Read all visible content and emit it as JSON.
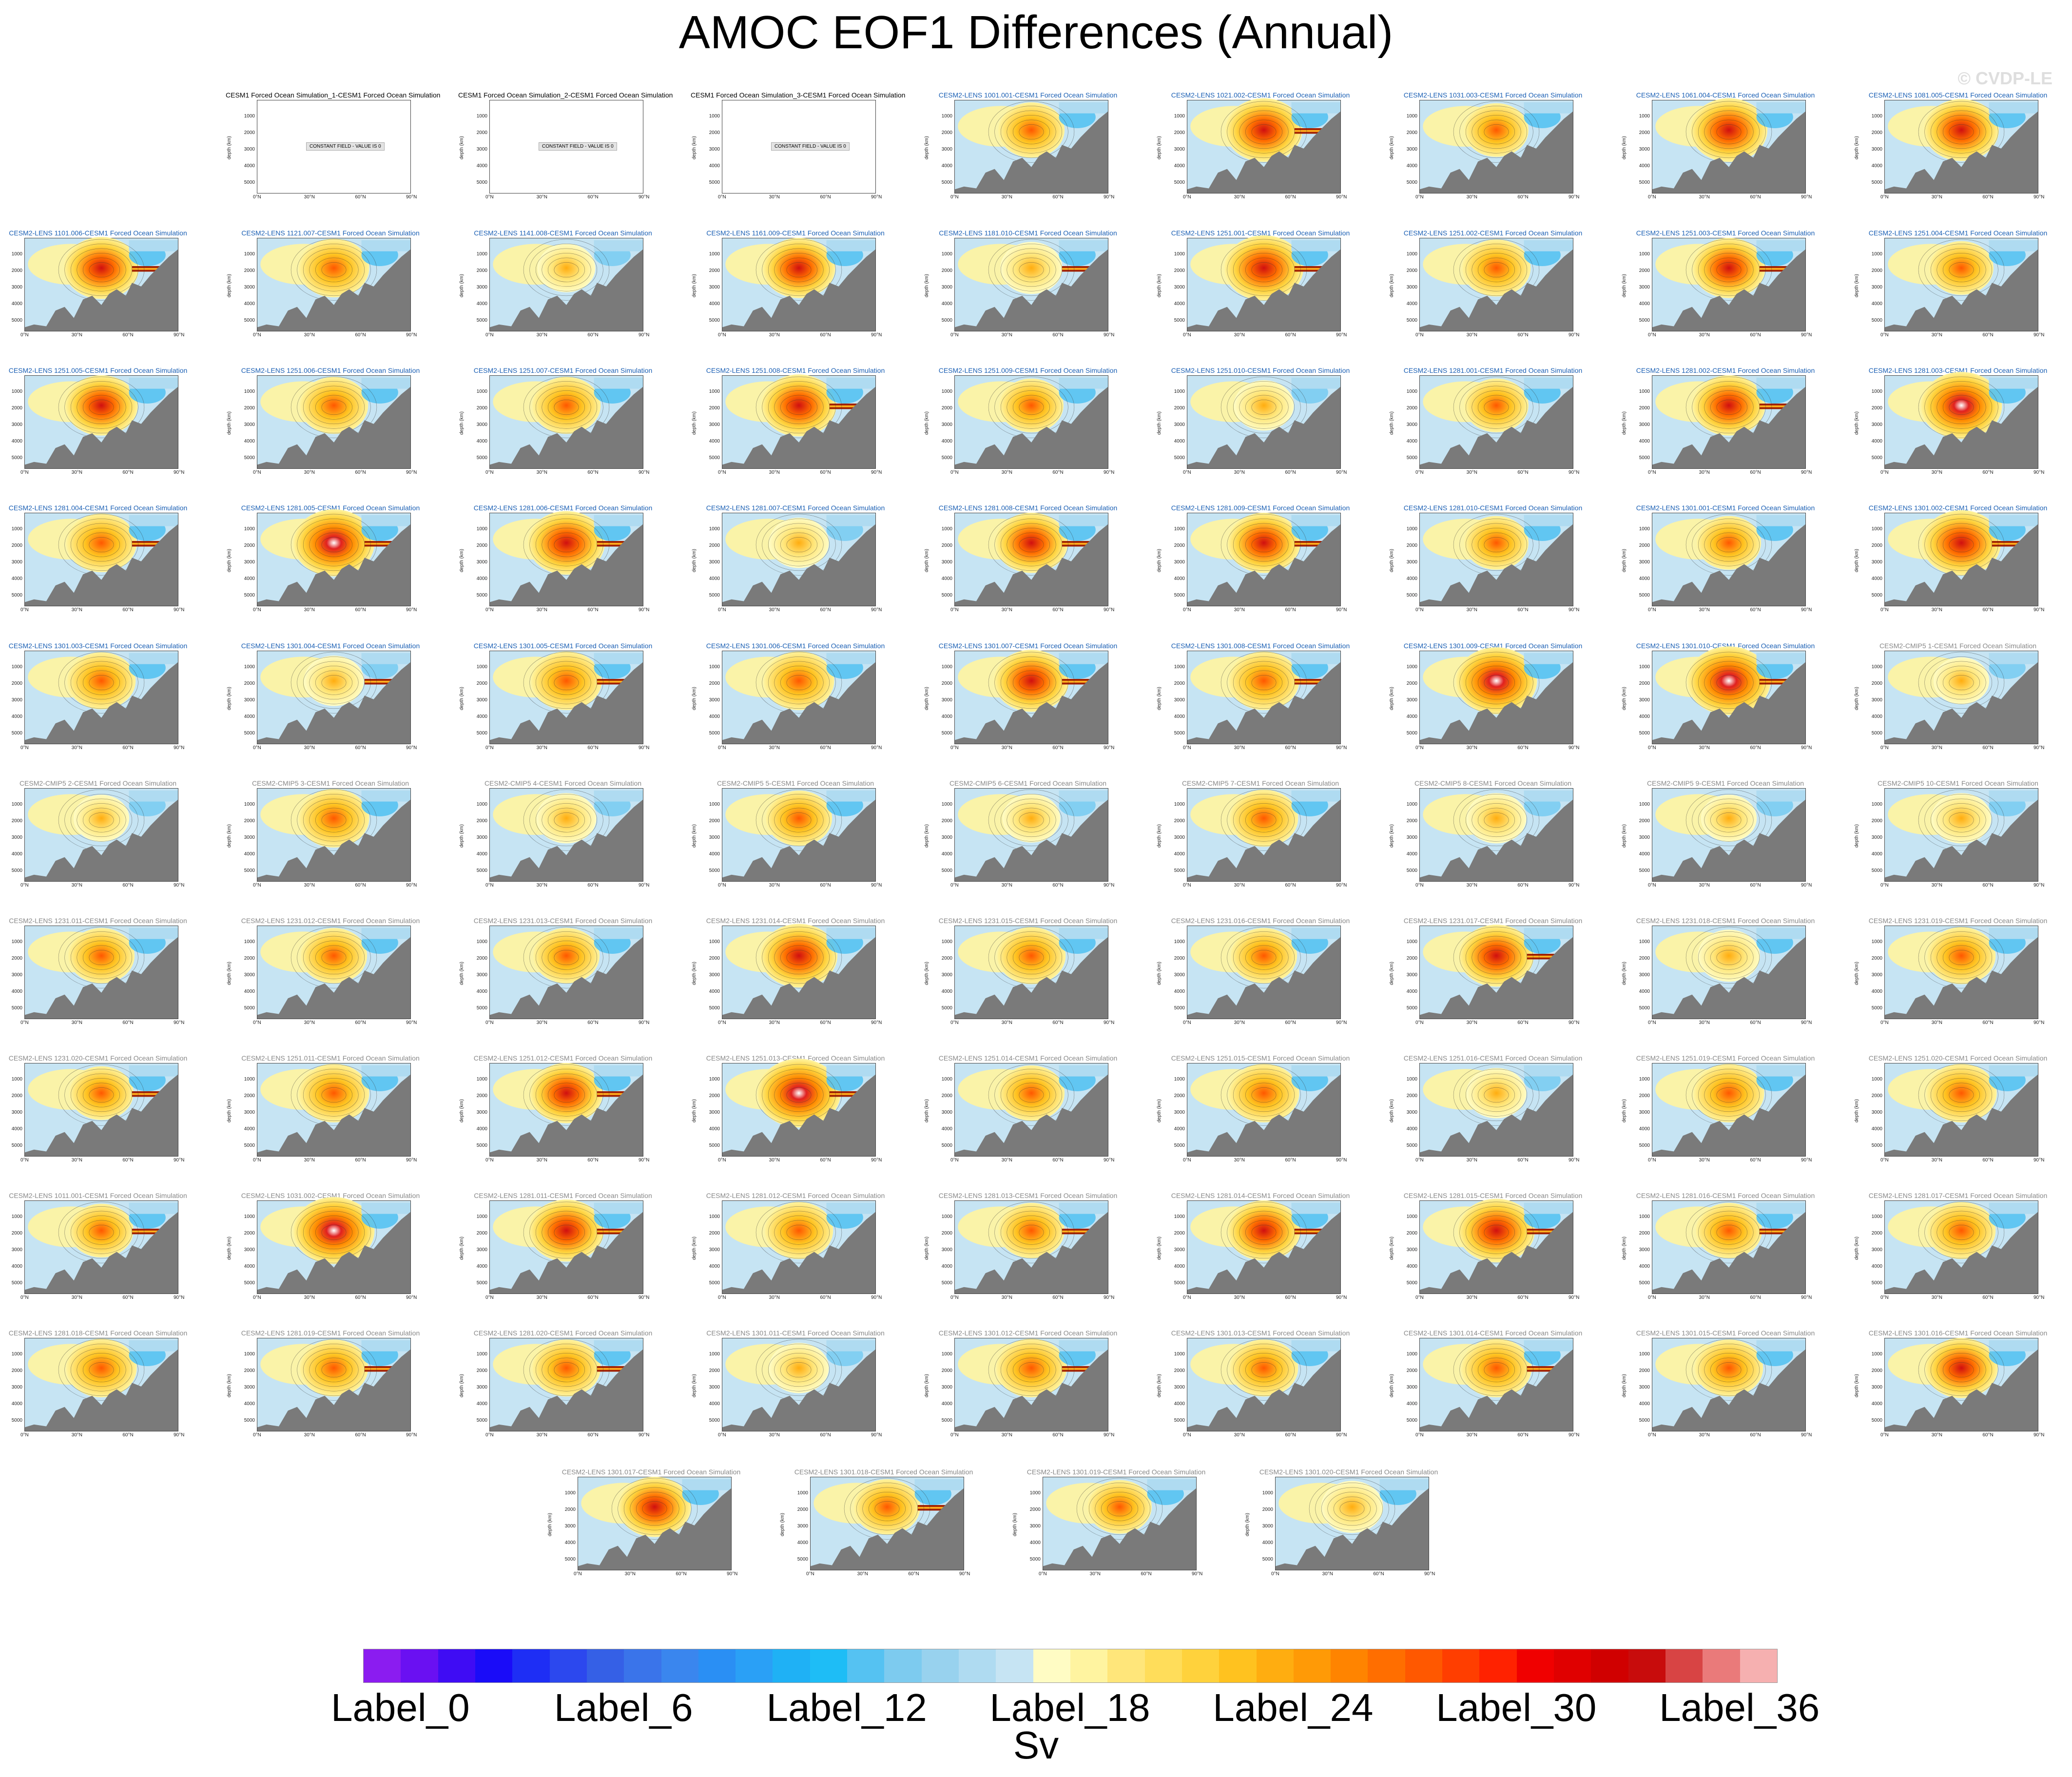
{
  "title": "AMOC EOF1 Differences (Annual)",
  "watermark": "© CVDP-LE",
  "units": "Sv",
  "chart_data": {
    "type": "heatmap",
    "title": "AMOC EOF1 Differences (Annual)",
    "yaxis": {
      "label": "depth (km)",
      "ticks": [
        "1000",
        "2000",
        "3000",
        "4000",
        "5000"
      ],
      "reversed": true
    },
    "xaxis": {
      "ticks": [
        "0°N",
        "30°N",
        "60°N",
        "90°N"
      ]
    },
    "colorbar": {
      "labels": [
        "Label_0",
        "Label_6",
        "Label_12",
        "Label_18",
        "Label_24",
        "Label_30",
        "Label_36"
      ],
      "colors": [
        "#8b1cf0",
        "#6a10f2",
        "#3f0cf4",
        "#1a0cf8",
        "#1e2ef5",
        "#2c48ee",
        "#3560e6",
        "#3a74ea",
        "#3a86ee",
        "#2a8ff4",
        "#2aa0f6",
        "#1fb1f5",
        "#1ebdf6",
        "#55c2f2",
        "#7dcbef",
        "#98d2ee",
        "#afdbf1",
        "#c6e4f3",
        "#fffcc4",
        "#fff4a0",
        "#ffe67a",
        "#ffdd5a",
        "#ffd23c",
        "#ffc21f",
        "#ffad10",
        "#ff9a06",
        "#ff8400",
        "#ff6e00",
        "#ff5800",
        "#ff3e00",
        "#ff2200",
        "#f00000",
        "#e00000",
        "#d00000",
        "#c80c0c",
        "#d84444",
        "#ea7a7a",
        "#f6b0b0"
      ]
    },
    "panels": [
      {
        "label": "CESM1 Forced Ocean Simulation_1-CESM1 Forced Ocean Simulation",
        "group": "black",
        "intensity": 0,
        "constant": true
      },
      {
        "label": "CESM1 Forced Ocean Simulation_2-CESM1 Forced Ocean Simulation",
        "group": "black",
        "intensity": 0,
        "constant": true
      },
      {
        "label": "CESM1 Forced Ocean Simulation_3-CESM1 Forced Ocean Simulation",
        "group": "black",
        "intensity": 0,
        "constant": true
      },
      {
        "label": "CESM2-LENS 1001.001-CESM1 Forced Ocean Simulation",
        "group": "lens",
        "intensity": 0.55,
        "stripe": false
      },
      {
        "label": "CESM2-LENS 1021.002-CESM1 Forced Ocean Simulation",
        "group": "lens",
        "intensity": 0.8,
        "stripe": true
      },
      {
        "label": "CESM2-LENS 1031.003-CESM1 Forced Ocean Simulation",
        "group": "lens",
        "intensity": 0.5,
        "stripe": false
      },
      {
        "label": "CESM2-LENS 1061.004-CESM1 Forced Ocean Simulation",
        "group": "lens",
        "intensity": 0.8,
        "stripe": false
      },
      {
        "label": "CESM2-LENS 1081.005-CESM1 Forced Ocean Simulation",
        "group": "lens",
        "intensity": 0.75,
        "stripe": false
      },
      {
        "label": "CESM2-LENS 1101.006-CESM1 Forced Ocean Simulation",
        "group": "lens",
        "intensity": 0.75,
        "stripe": true
      },
      {
        "label": "CESM2-LENS 1121.007-CESM1 Forced Ocean Simulation",
        "group": "lens",
        "intensity": 0.65,
        "stripe": false
      },
      {
        "label": "CESM2-LENS 1141.008-CESM1 Forced Ocean Simulation",
        "group": "lens",
        "intensity": 0.35,
        "stripe": false
      },
      {
        "label": "CESM2-LENS 1161.009-CESM1 Forced Ocean Simulation",
        "group": "lens",
        "intensity": 0.7,
        "stripe": false
      },
      {
        "label": "CESM2-LENS 1181.010-CESM1 Forced Ocean Simulation",
        "group": "lens",
        "intensity": 0.45,
        "stripe": true
      },
      {
        "label": "CESM2-LENS 1251.001-CESM1 Forced Ocean Simulation",
        "group": "lens",
        "intensity": 0.85,
        "stripe": true
      },
      {
        "label": "CESM2-LENS 1251.002-CESM1 Forced Ocean Simulation",
        "group": "lens",
        "intensity": 0.6,
        "stripe": false
      },
      {
        "label": "CESM2-LENS 1251.003-CESM1 Forced Ocean Simulation",
        "group": "lens",
        "intensity": 0.7,
        "stripe": true
      },
      {
        "label": "CESM2-LENS 1251.004-CESM1 Forced Ocean Simulation",
        "group": "lens",
        "intensity": 0.5,
        "stripe": false
      },
      {
        "label": "CESM2-LENS 1251.005-CESM1 Forced Ocean Simulation",
        "group": "lens",
        "intensity": 0.7,
        "stripe": false
      },
      {
        "label": "CESM2-LENS 1251.006-CESM1 Forced Ocean Simulation",
        "group": "lens",
        "intensity": 0.6,
        "stripe": false
      },
      {
        "label": "CESM2-LENS 1251.007-CESM1 Forced Ocean Simulation",
        "group": "lens",
        "intensity": 0.6,
        "stripe": false
      },
      {
        "label": "CESM2-LENS 1251.008-CESM1 Forced Ocean Simulation",
        "group": "lens",
        "intensity": 0.75,
        "stripe": true
      },
      {
        "label": "CESM2-LENS 1251.009-CESM1 Forced Ocean Simulation",
        "group": "lens",
        "intensity": 0.5,
        "stripe": false
      },
      {
        "label": "CESM2-LENS 1251.010-CESM1 Forced Ocean Simulation",
        "group": "lens",
        "intensity": 0.4,
        "stripe": false
      },
      {
        "label": "CESM2-LENS 1281.001-CESM1 Forced Ocean Simulation",
        "group": "lens",
        "intensity": 0.5,
        "stripe": false
      },
      {
        "label": "CESM2-LENS 1281.002-CESM1 Forced Ocean Simulation",
        "group": "lens",
        "intensity": 0.7,
        "stripe": true
      },
      {
        "label": "CESM2-LENS 1281.003-CESM1 Forced Ocean Simulation",
        "group": "lens",
        "intensity": 0.9,
        "stripe": false
      },
      {
        "label": "CESM2-LENS 1281.004-CESM1 Forced Ocean Simulation",
        "group": "lens",
        "intensity": 0.65,
        "stripe": true
      },
      {
        "label": "CESM2-LENS 1281.005-CESM1 Forced Ocean Simulation",
        "group": "lens",
        "intensity": 0.9,
        "stripe": true
      },
      {
        "label": "CESM2-LENS 1281.006-CESM1 Forced Ocean Simulation",
        "group": "lens",
        "intensity": 0.8,
        "stripe": true
      },
      {
        "label": "CESM2-LENS 1281.007-CESM1 Forced Ocean Simulation",
        "group": "lens",
        "intensity": 0.4,
        "stripe": false
      },
      {
        "label": "CESM2-LENS 1281.008-CESM1 Forced Ocean Simulation",
        "group": "lens",
        "intensity": 0.7,
        "stripe": true
      },
      {
        "label": "CESM2-LENS 1281.009-CESM1 Forced Ocean Simulation",
        "group": "lens",
        "intensity": 0.7,
        "stripe": true
      },
      {
        "label": "CESM2-LENS 1281.010-CESM1 Forced Ocean Simulation",
        "group": "lens",
        "intensity": 0.5,
        "stripe": false
      },
      {
        "label": "CESM2-LENS 1301.001-CESM1 Forced Ocean Simulation",
        "group": "lens",
        "intensity": 0.5,
        "stripe": false
      },
      {
        "label": "CESM2-LENS 1301.002-CESM1 Forced Ocean Simulation",
        "group": "lens",
        "intensity": 0.85,
        "stripe": true
      },
      {
        "label": "CESM2-LENS 1301.003-CESM1 Forced Ocean Simulation",
        "group": "lens",
        "intensity": 0.6,
        "stripe": false
      },
      {
        "label": "CESM2-LENS 1301.004-CESM1 Forced Ocean Simulation",
        "group": "lens",
        "intensity": 0.4,
        "stripe": true
      },
      {
        "label": "CESM2-LENS 1301.005-CESM1 Forced Ocean Simulation",
        "group": "lens",
        "intensity": 0.65,
        "stripe": true
      },
      {
        "label": "CESM2-LENS 1301.006-CESM1 Forced Ocean Simulation",
        "group": "lens",
        "intensity": 0.65,
        "stripe": false
      },
      {
        "label": "CESM2-LENS 1301.007-CESM1 Forced Ocean Simulation",
        "group": "lens",
        "intensity": 0.75,
        "stripe": true
      },
      {
        "label": "CESM2-LENS 1301.008-CESM1 Forced Ocean Simulation",
        "group": "lens",
        "intensity": 0.65,
        "stripe": true
      },
      {
        "label": "CESM2-LENS 1301.009-CESM1 Forced Ocean Simulation",
        "group": "lens",
        "intensity": 0.9,
        "stripe": false
      },
      {
        "label": "CESM2-LENS 1301.010-CESM1 Forced Ocean Simulation",
        "group": "lens",
        "intensity": 0.95,
        "stripe": true
      },
      {
        "label": "CESM2-CMIP5 1-CESM1 Forced Ocean Simulation",
        "group": "gray",
        "intensity": 0.3,
        "stripe": false
      },
      {
        "label": "CESM2-CMIP5 2-CESM1 Forced Ocean Simulation",
        "group": "gray",
        "intensity": 0.3,
        "stripe": false
      },
      {
        "label": "CESM2-CMIP5 3-CESM1 Forced Ocean Simulation",
        "group": "gray",
        "intensity": 0.65,
        "stripe": false
      },
      {
        "label": "CESM2-CMIP5 4-CESM1 Forced Ocean Simulation",
        "group": "gray",
        "intensity": 0.4,
        "stripe": false
      },
      {
        "label": "CESM2-CMIP5 5-CESM1 Forced Ocean Simulation",
        "group": "gray",
        "intensity": 0.55,
        "stripe": false
      },
      {
        "label": "CESM2-CMIP5 6-CESM1 Forced Ocean Simulation",
        "group": "gray",
        "intensity": 0.35,
        "stripe": false
      },
      {
        "label": "CESM2-CMIP5 7-CESM1 Forced Ocean Simulation",
        "group": "gray",
        "intensity": 0.6,
        "stripe": false
      },
      {
        "label": "CESM2-CMIP5 8-CESM1 Forced Ocean Simulation",
        "group": "gray",
        "intensity": 0.4,
        "stripe": false
      },
      {
        "label": "CESM2-CMIP5 9-CESM1 Forced Ocean Simulation",
        "group": "gray",
        "intensity": 0.3,
        "stripe": false
      },
      {
        "label": "CESM2-CMIP5 10-CESM1 Forced Ocean Simulation",
        "group": "gray",
        "intensity": 0.4,
        "stripe": false
      },
      {
        "label": "CESM2-LENS 1231.011-CESM1 Forced Ocean Simulation",
        "group": "gray",
        "intensity": 0.55,
        "stripe": false
      },
      {
        "label": "CESM2-LENS 1231.012-CESM1 Forced Ocean Simulation",
        "group": "gray",
        "intensity": 0.55,
        "stripe": false
      },
      {
        "label": "CESM2-LENS 1231.013-CESM1 Forced Ocean Simulation",
        "group": "gray",
        "intensity": 0.55,
        "stripe": false
      },
      {
        "label": "CESM2-LENS 1231.014-CESM1 Forced Ocean Simulation",
        "group": "gray",
        "intensity": 0.8,
        "stripe": false
      },
      {
        "label": "CESM2-LENS 1231.015-CESM1 Forced Ocean Simulation",
        "group": "gray",
        "intensity": 0.6,
        "stripe": false
      },
      {
        "label": "CESM2-LENS 1231.016-CESM1 Forced Ocean Simulation",
        "group": "gray",
        "intensity": 0.55,
        "stripe": false
      },
      {
        "label": "CESM2-LENS 1231.017-CESM1 Forced Ocean Simulation",
        "group": "gray",
        "intensity": 0.75,
        "stripe": true
      },
      {
        "label": "CESM2-LENS 1231.018-CESM1 Forced Ocean Simulation",
        "group": "gray",
        "intensity": 0.45,
        "stripe": false
      },
      {
        "label": "CESM2-LENS 1231.019-CESM1 Forced Ocean Simulation",
        "group": "gray",
        "intensity": 0.6,
        "stripe": false
      },
      {
        "label": "CESM2-LENS 1231.020-CESM1 Forced Ocean Simulation",
        "group": "gray",
        "intensity": 0.5,
        "stripe": true
      },
      {
        "label": "CESM2-LENS 1251.011-CESM1 Forced Ocean Simulation",
        "group": "gray",
        "intensity": 0.65,
        "stripe": false
      },
      {
        "label": "CESM2-LENS 1251.012-CESM1 Forced Ocean Simulation",
        "group": "gray",
        "intensity": 0.7,
        "stripe": true
      },
      {
        "label": "CESM2-LENS 1251.013-CESM1 Forced Ocean Simulation",
        "group": "gray",
        "intensity": 0.95,
        "stripe": true
      },
      {
        "label": "CESM2-LENS 1251.014-CESM1 Forced Ocean Simulation",
        "group": "gray",
        "intensity": 0.55,
        "stripe": false
      },
      {
        "label": "CESM2-LENS 1251.015-CESM1 Forced Ocean Simulation",
        "group": "gray",
        "intensity": 0.65,
        "stripe": false
      },
      {
        "label": "CESM2-LENS 1251.016-CESM1 Forced Ocean Simulation",
        "group": "gray",
        "intensity": 0.4,
        "stripe": false
      },
      {
        "label": "CESM2-LENS 1251.019-CESM1 Forced Ocean Simulation",
        "group": "gray",
        "intensity": 0.65,
        "stripe": false
      },
      {
        "label": "CESM2-LENS 1251.020-CESM1 Forced Ocean Simulation",
        "group": "gray",
        "intensity": 0.65,
        "stripe": false
      },
      {
        "label": "CESM2-LENS 1011.001-CESM1 Forced Ocean Simulation",
        "group": "gray",
        "intensity": 0.5,
        "stripe": true
      },
      {
        "label": "CESM2-LENS 1031.002-CESM1 Forced Ocean Simulation",
        "group": "gray",
        "intensity": 0.9,
        "stripe": false
      },
      {
        "label": "CESM2-LENS 1281.011-CESM1 Forced Ocean Simulation",
        "group": "gray",
        "intensity": 0.75,
        "stripe": true
      },
      {
        "label": "CESM2-LENS 1281.012-CESM1 Forced Ocean Simulation",
        "group": "gray",
        "intensity": 0.6,
        "stripe": false
      },
      {
        "label": "CESM2-LENS 1281.013-CESM1 Forced Ocean Simulation",
        "group": "gray",
        "intensity": 0.55,
        "stripe": true
      },
      {
        "label": "CESM2-LENS 1281.014-CESM1 Forced Ocean Simulation",
        "group": "gray",
        "intensity": 0.7,
        "stripe": true
      },
      {
        "label": "CESM2-LENS 1281.015-CESM1 Forced Ocean Simulation",
        "group": "gray",
        "intensity": 0.8,
        "stripe": true
      },
      {
        "label": "CESM2-LENS 1281.016-CESM1 Forced Ocean Simulation",
        "group": "gray",
        "intensity": 0.55,
        "stripe": true
      },
      {
        "label": "CESM2-LENS 1281.017-CESM1 Forced Ocean Simulation",
        "group": "gray",
        "intensity": 0.6,
        "stripe": false
      },
      {
        "label": "CESM2-LENS 1281.018-CESM1 Forced Ocean Simulation",
        "group": "gray",
        "intensity": 0.65,
        "stripe": false
      },
      {
        "label": "CESM2-LENS 1281.019-CESM1 Forced Ocean Simulation",
        "group": "gray",
        "intensity": 0.6,
        "stripe": true
      },
      {
        "label": "CESM2-LENS 1281.020-CESM1 Forced Ocean Simulation",
        "group": "gray",
        "intensity": 0.6,
        "stripe": true
      },
      {
        "label": "CESM2-LENS 1301.011-CESM1 Forced Ocean Simulation",
        "group": "gray",
        "intensity": 0.4,
        "stripe": false
      },
      {
        "label": "CESM2-LENS 1301.012-CESM1 Forced Ocean Simulation",
        "group": "gray",
        "intensity": 0.65,
        "stripe": true
      },
      {
        "label": "CESM2-LENS 1301.013-CESM1 Forced Ocean Simulation",
        "group": "gray",
        "intensity": 0.6,
        "stripe": false
      },
      {
        "label": "CESM2-LENS 1301.014-CESM1 Forced Ocean Simulation",
        "group": "gray",
        "intensity": 0.65,
        "stripe": true
      },
      {
        "label": "CESM2-LENS 1301.015-CESM1 Forced Ocean Simulation",
        "group": "gray",
        "intensity": 0.6,
        "stripe": false
      },
      {
        "label": "CESM2-LENS 1301.016-CESM1 Forced Ocean Simulation",
        "group": "gray",
        "intensity": 0.7,
        "stripe": false
      },
      {
        "label": "CESM2-LENS 1301.017-CESM1 Forced Ocean Simulation",
        "group": "gray",
        "intensity": 0.7,
        "stripe": false
      },
      {
        "label": "CESM2-LENS 1301.018-CESM1 Forced Ocean Simulation",
        "group": "gray",
        "intensity": 0.55,
        "stripe": true
      },
      {
        "label": "CESM2-LENS 1301.019-CESM1 Forced Ocean Simulation",
        "group": "gray",
        "intensity": 0.5,
        "stripe": false
      },
      {
        "label": "CESM2-LENS 1301.020-CESM1 Forced Ocean Simulation",
        "group": "gray",
        "intensity": 0.45,
        "stripe": false
      }
    ],
    "constant_label": "CONSTANT FIELD - VALUE IS 0",
    "group_colors": {
      "black": "#000000",
      "lens": "#1a5fb4",
      "gray": "#888888"
    }
  }
}
